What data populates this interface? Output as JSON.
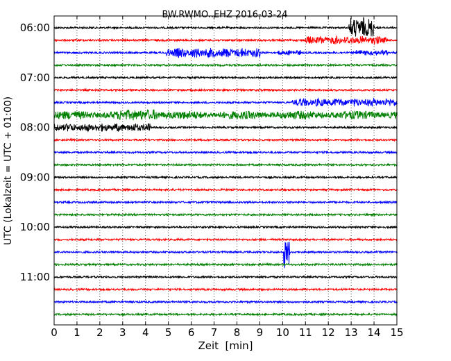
{
  "chart_data": {
    "type": "line",
    "title": "BW.RWMO..EHZ 2016-03-24",
    "xlabel": "Zeit  [min]",
    "ylabel": "UTC (Lokalzeit = UTC + 01:00)",
    "xlim": [
      0,
      15
    ],
    "x_ticks": [
      "0",
      "1",
      "2",
      "3",
      "4",
      "5",
      "6",
      "7",
      "8",
      "9",
      "10",
      "11",
      "12",
      "13",
      "14",
      "15"
    ],
    "y_tick_labels": [
      "06:00",
      "07:00",
      "08:00",
      "09:00",
      "10:00",
      "11:00"
    ],
    "trace_colors": [
      "#000000",
      "#ff0000",
      "#0000ff",
      "#008000"
    ],
    "grid": "vertical-dotted",
    "traces": [
      {
        "start": "06:00",
        "color": "#000000",
        "events": [
          {
            "t0": 12.9,
            "t1": 14.0,
            "amp": 15
          }
        ]
      },
      {
        "start": "06:15",
        "color": "#ff0000",
        "events": [
          {
            "t0": 11.0,
            "t1": 14.6,
            "amp": 6
          }
        ]
      },
      {
        "start": "06:30",
        "color": "#0000ff",
        "events": [
          {
            "t0": 4.9,
            "t1": 9.0,
            "amp": 7
          },
          {
            "t0": 9.8,
            "t1": 10.8,
            "amp": 4
          },
          {
            "t0": 13.2,
            "t1": 14.6,
            "amp": 4
          }
        ]
      },
      {
        "start": "06:45",
        "color": "#008000",
        "events": []
      },
      {
        "start": "07:00",
        "color": "#000000",
        "events": []
      },
      {
        "start": "07:15",
        "color": "#ff0000",
        "events": []
      },
      {
        "start": "07:30",
        "color": "#0000ff",
        "events": [
          {
            "t0": 10.4,
            "t1": 15.0,
            "amp": 6
          }
        ]
      },
      {
        "start": "07:45",
        "color": "#008000",
        "events": [
          {
            "t0": 0.0,
            "t1": 15.0,
            "amp": 6
          },
          {
            "t0": 2.8,
            "t1": 4.6,
            "amp": 8
          }
        ]
      },
      {
        "start": "08:00",
        "color": "#000000",
        "events": [
          {
            "t0": 0.0,
            "t1": 4.2,
            "amp": 6
          }
        ]
      },
      {
        "start": "08:15",
        "color": "#ff0000",
        "events": []
      },
      {
        "start": "08:30",
        "color": "#0000ff",
        "events": []
      },
      {
        "start": "08:45",
        "color": "#008000",
        "events": []
      },
      {
        "start": "09:00",
        "color": "#000000",
        "events": []
      },
      {
        "start": "09:15",
        "color": "#ff0000",
        "events": []
      },
      {
        "start": "09:30",
        "color": "#0000ff",
        "events": []
      },
      {
        "start": "09:45",
        "color": "#008000",
        "events": []
      },
      {
        "start": "10:00",
        "color": "#000000",
        "events": []
      },
      {
        "start": "10:15",
        "color": "#ff0000",
        "events": []
      },
      {
        "start": "10:30",
        "color": "#0000ff",
        "events": [
          {
            "t0": 10.05,
            "t1": 10.3,
            "amp": 24
          }
        ]
      },
      {
        "start": "10:45",
        "color": "#008000",
        "events": []
      },
      {
        "start": "11:00",
        "color": "#000000",
        "events": []
      },
      {
        "start": "11:15",
        "color": "#ff0000",
        "events": []
      },
      {
        "start": "11:30",
        "color": "#0000ff",
        "events": []
      },
      {
        "start": "11:45",
        "color": "#008000",
        "events": []
      }
    ]
  }
}
